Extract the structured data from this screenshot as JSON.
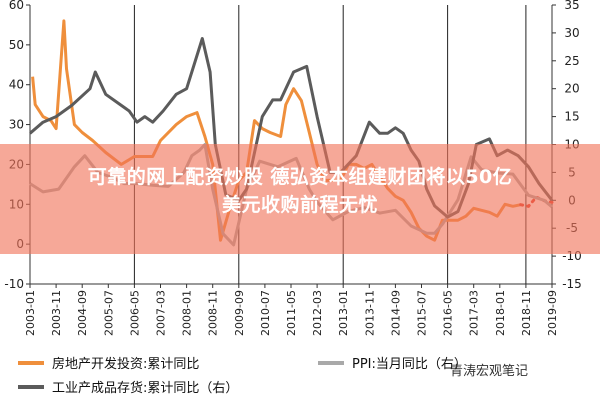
{
  "chart_data": {
    "type": "line",
    "left_axis": {
      "ylim": [
        -10,
        60
      ],
      "ticks": [
        "-10",
        "0",
        "10",
        "20",
        "30",
        "40",
        "50",
        "60"
      ]
    },
    "right_axis": {
      "ylim": [
        -15,
        35
      ],
      "ticks": [
        "-15",
        "-10",
        "-5",
        "0",
        "5",
        "10",
        "15",
        "20",
        "25",
        "30",
        "35"
      ]
    },
    "x_ticks": [
      "2003-01",
      "2003-11",
      "2004-09",
      "2005-07",
      "2006-05",
      "2007-03",
      "2008-01",
      "2008-11",
      "2009-09",
      "2010-07",
      "2011-05",
      "2012-03",
      "2013-01",
      "2013-11",
      "2014-09",
      "2015-07",
      "2016-05",
      "2017-03",
      "2018-01",
      "2018-11",
      "2019-09"
    ],
    "x_start": "2003-01",
    "x_end": "2019-09",
    "vertical_lines": [
      "2006-05",
      "2009-09",
      "2013-01",
      "2016-05",
      "2018-11"
    ],
    "series": [
      {
        "name": "房地产开发投资:累计同比",
        "axis": "left",
        "color": "#ef8f3c",
        "points": [
          [
            "2003-02",
            42
          ],
          [
            "2003-03",
            35
          ],
          [
            "2003-06",
            32
          ],
          [
            "2003-09",
            31
          ],
          [
            "2003-11",
            29
          ],
          [
            "2004-02",
            56
          ],
          [
            "2004-03",
            44
          ],
          [
            "2004-06",
            30
          ],
          [
            "2004-09",
            28
          ],
          [
            "2005-01",
            26
          ],
          [
            "2005-06",
            23
          ],
          [
            "2005-12",
            20
          ],
          [
            "2006-05",
            22
          ],
          [
            "2006-12",
            22
          ],
          [
            "2007-03",
            26
          ],
          [
            "2007-09",
            30
          ],
          [
            "2008-01",
            32
          ],
          [
            "2008-05",
            33
          ],
          [
            "2008-08",
            27
          ],
          [
            "2008-11",
            20
          ],
          [
            "2009-02",
            1
          ],
          [
            "2009-06",
            10
          ],
          [
            "2009-09",
            16
          ],
          [
            "2009-12",
            18
          ],
          [
            "2010-03",
            31
          ],
          [
            "2010-06",
            29
          ],
          [
            "2010-09",
            28
          ],
          [
            "2011-01",
            27
          ],
          [
            "2011-03",
            35
          ],
          [
            "2011-06",
            39
          ],
          [
            "2011-09",
            36
          ],
          [
            "2011-12",
            28
          ],
          [
            "2012-03",
            20
          ],
          [
            "2012-06",
            16
          ],
          [
            "2012-12",
            16
          ],
          [
            "2013-03",
            20
          ],
          [
            "2013-06",
            20
          ],
          [
            "2013-09",
            19
          ],
          [
            "2013-12",
            20
          ],
          [
            "2014-03",
            17
          ],
          [
            "2014-06",
            14
          ],
          [
            "2014-09",
            12
          ],
          [
            "2014-12",
            11
          ],
          [
            "2015-03",
            8
          ],
          [
            "2015-06",
            4
          ],
          [
            "2015-09",
            2
          ],
          [
            "2015-12",
            1
          ],
          [
            "2016-03",
            6
          ],
          [
            "2016-06",
            6
          ],
          [
            "2016-09",
            6
          ],
          [
            "2016-12",
            7
          ],
          [
            "2017-03",
            9
          ],
          [
            "2017-06",
            8.5
          ],
          [
            "2017-09",
            8
          ],
          [
            "2017-12",
            7
          ],
          [
            "2018-03",
            10
          ],
          [
            "2018-06",
            9.5
          ],
          [
            "2018-09",
            9.9
          ],
          [
            "2018-12",
            9.5
          ],
          [
            "2019-03",
            11.8
          ],
          [
            "2019-06",
            10.9
          ],
          [
            "2019-09",
            10.5
          ]
        ]
      },
      {
        "name": "PPI:当月同比",
        "axis": "right",
        "color": "#a9a9a9",
        "points": [
          [
            "2003-01",
            3
          ],
          [
            "2003-06",
            1.5
          ],
          [
            "2003-12",
            2
          ],
          [
            "2004-06",
            6
          ],
          [
            "2004-10",
            8
          ],
          [
            "2005-03",
            5
          ],
          [
            "2005-09",
            4
          ],
          [
            "2006-01",
            3
          ],
          [
            "2006-06",
            3
          ],
          [
            "2006-12",
            2.7
          ],
          [
            "2007-06",
            2.5
          ],
          [
            "2007-12",
            5
          ],
          [
            "2008-03",
            8
          ],
          [
            "2008-06",
            9
          ],
          [
            "2008-08",
            10
          ],
          [
            "2008-11",
            2
          ],
          [
            "2009-03",
            -6
          ],
          [
            "2009-07",
            -8
          ],
          [
            "2009-12",
            2
          ],
          [
            "2010-05",
            7
          ],
          [
            "2010-12",
            6
          ],
          [
            "2011-07",
            7.5
          ],
          [
            "2011-12",
            2
          ],
          [
            "2012-03",
            -0.3
          ],
          [
            "2012-09",
            -3.5
          ],
          [
            "2013-03",
            -2
          ],
          [
            "2013-09",
            -1.3
          ],
          [
            "2014-03",
            -2.3
          ],
          [
            "2014-09",
            -1.8
          ],
          [
            "2015-03",
            -4.6
          ],
          [
            "2015-09",
            -5.9
          ],
          [
            "2015-12",
            -5.9
          ],
          [
            "2016-03",
            -4.3
          ],
          [
            "2016-09",
            0.1
          ],
          [
            "2017-02",
            7.8
          ],
          [
            "2017-06",
            5.5
          ],
          [
            "2017-12",
            4.9
          ],
          [
            "2018-06",
            4.7
          ],
          [
            "2018-12",
            0.9
          ],
          [
            "2019-06",
            0
          ],
          [
            "2019-09",
            -1.2
          ]
        ]
      },
      {
        "name": "工业产成品存货:累计同比（右）",
        "axis": "right",
        "color": "#5b5b5b",
        "points": [
          [
            "2003-01",
            12
          ],
          [
            "2003-06",
            14
          ],
          [
            "2003-11",
            15
          ],
          [
            "2004-05",
            17
          ],
          [
            "2004-12",
            20
          ],
          [
            "2005-02",
            23
          ],
          [
            "2005-06",
            19
          ],
          [
            "2005-12",
            17
          ],
          [
            "2006-03",
            16
          ],
          [
            "2006-06",
            14
          ],
          [
            "2006-09",
            15
          ],
          [
            "2006-12",
            14
          ],
          [
            "2007-04",
            16
          ],
          [
            "2007-09",
            19
          ],
          [
            "2008-01",
            20
          ],
          [
            "2008-07",
            29
          ],
          [
            "2008-10",
            23
          ],
          [
            "2008-12",
            10
          ],
          [
            "2009-04",
            1
          ],
          [
            "2009-09",
            0
          ],
          [
            "2009-12",
            2
          ],
          [
            "2010-06",
            15
          ],
          [
            "2010-10",
            18
          ],
          [
            "2011-01",
            18
          ],
          [
            "2011-06",
            23
          ],
          [
            "2011-11",
            24
          ],
          [
            "2012-03",
            15
          ],
          [
            "2012-08",
            5
          ],
          [
            "2012-12",
            5
          ],
          [
            "2013-06",
            8
          ],
          [
            "2013-11",
            14
          ],
          [
            "2014-03",
            12
          ],
          [
            "2014-06",
            12
          ],
          [
            "2014-09",
            13
          ],
          [
            "2014-12",
            12
          ],
          [
            "2015-03",
            9
          ],
          [
            "2015-06",
            7
          ],
          [
            "2015-09",
            2
          ],
          [
            "2015-12",
            -1
          ],
          [
            "2016-05",
            -3
          ],
          [
            "2016-09",
            -2
          ],
          [
            "2017-01",
            3
          ],
          [
            "2017-04",
            10
          ],
          [
            "2017-09",
            11
          ],
          [
            "2017-12",
            8
          ],
          [
            "2018-04",
            9
          ],
          [
            "2018-08",
            8
          ],
          [
            "2018-12",
            6
          ],
          [
            "2019-04",
            3
          ],
          [
            "2019-09",
            0
          ]
        ]
      }
    ]
  },
  "banner": {
    "line1": "可靠的网上配资炒股 德弘资本组建财团将以50亿",
    "line2": "美元收购前程无忧"
  },
  "legend": [
    {
      "label": "房地产开发投资:累计同比",
      "color": "#ef8f3c"
    },
    {
      "label": "PPI:当月同比（右）",
      "color": "#a9a9a9"
    },
    {
      "label": "工业产成品存货:累计同比（右）",
      "color": "#5b5b5b"
    }
  ],
  "watermark": "青涛宏观笔记"
}
